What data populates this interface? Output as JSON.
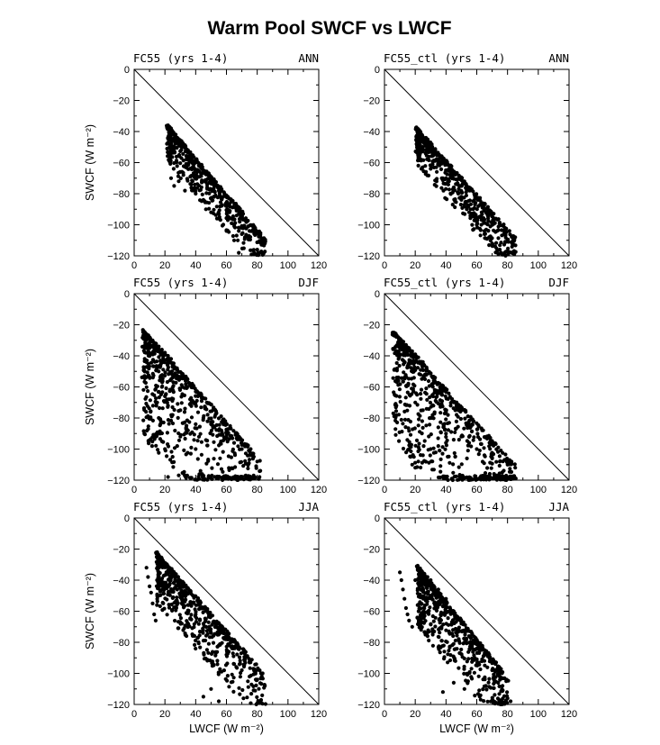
{
  "figure": {
    "title": "Warm Pool SWCF vs LWCF",
    "ylabel": "SWCF (W m⁻²)",
    "xlabel": "LWCF (W m⁻²)"
  },
  "chart_data": [
    {
      "type": "scatter",
      "left_title": "FC55 (yrs 1-4)",
      "right_title": "ANN",
      "xlim": [
        0,
        120
      ],
      "ylim": [
        -120,
        0
      ],
      "xticks": [
        0,
        20,
        40,
        60,
        80,
        100,
        120
      ],
      "yticks": [
        0,
        -20,
        -40,
        -60,
        -80,
        -100,
        -120
      ],
      "reference_line": [
        [
          0,
          0
        ],
        [
          120,
          -120
        ]
      ],
      "cloud": {
        "x0": 22,
        "x1": 85,
        "upper_at_x0": -36,
        "upper_at_x1": -108,
        "spread": 24,
        "n": 520,
        "seed": 11
      },
      "x": [
        22,
        23,
        24,
        25,
        25,
        27,
        28,
        30,
        31,
        33,
        35,
        24,
        26,
        29,
        32,
        36,
        40,
        42,
        45,
        48,
        50,
        52,
        55,
        58,
        60,
        62,
        63,
        65,
        68,
        70,
        72,
        75,
        78,
        80,
        85,
        33,
        38,
        40,
        45,
        50,
        55,
        60,
        65,
        68
      ],
      "y": [
        -36,
        -37,
        -38,
        -40,
        -45,
        -42,
        -44,
        -46,
        -48,
        -50,
        -52,
        -70,
        -75,
        -72,
        -68,
        -64,
        -60,
        -62,
        -65,
        -68,
        -72,
        -75,
        -78,
        -82,
        -88,
        -92,
        -96,
        -100,
        -104,
        -106,
        -108,
        -104,
        -118,
        -116,
        -112,
        -78,
        -72,
        -80,
        -84,
        -92,
        -96,
        -104,
        -110,
        -118
      ]
    },
    {
      "type": "scatter",
      "left_title": "FC55_ctl (yrs 1-4)",
      "right_title": "ANN",
      "xlim": [
        0,
        120
      ],
      "ylim": [
        -120,
        0
      ],
      "xticks": [
        0,
        20,
        40,
        60,
        80,
        100,
        120
      ],
      "yticks": [
        0,
        -20,
        -40,
        -60,
        -80,
        -100,
        -120
      ],
      "reference_line": [
        [
          0,
          0
        ],
        [
          120,
          -120
        ]
      ],
      "cloud": {
        "x0": 21,
        "x1": 85,
        "upper_at_x0": -37,
        "upper_at_x1": -108,
        "spread": 24,
        "n": 520,
        "seed": 23
      },
      "x": [
        21,
        22,
        23,
        24,
        26,
        28,
        30,
        32,
        35,
        38,
        40,
        22,
        24,
        27,
        30,
        34,
        38,
        42,
        45,
        48,
        50,
        53,
        56,
        58,
        60,
        63,
        65,
        68,
        70,
        72,
        75,
        78,
        80,
        83,
        85,
        40,
        45,
        50,
        55,
        60,
        65
      ],
      "y": [
        -38,
        -40,
        -42,
        -44,
        -46,
        -48,
        -50,
        -52,
        -55,
        -58,
        -60,
        -62,
        -64,
        -66,
        -64,
        -66,
        -70,
        -72,
        -76,
        -80,
        -82,
        -86,
        -90,
        -94,
        -98,
        -100,
        -104,
        -108,
        -112,
        -114,
        -116,
        -118,
        -110,
        -112,
        -108,
        -70,
        -76,
        -84,
        -92,
        -100,
        -106
      ]
    },
    {
      "type": "scatter",
      "left_title": "FC55 (yrs 1-4)",
      "right_title": "DJF",
      "xlim": [
        0,
        120
      ],
      "ylim": [
        -120,
        0
      ],
      "xticks": [
        0,
        20,
        40,
        60,
        80,
        100,
        120
      ],
      "yticks": [
        0,
        -20,
        -40,
        -60,
        -80,
        -100,
        -120
      ],
      "reference_line": [
        [
          0,
          0
        ],
        [
          120,
          -120
        ]
      ],
      "cloud": {
        "x0": 6,
        "x1": 82,
        "upper_at_x0": -23,
        "upper_at_x1": -106,
        "spread": 70,
        "n": 700,
        "seed": 37
      },
      "x": [
        6,
        7,
        8,
        9,
        10,
        12,
        14,
        16,
        18,
        20,
        22,
        24,
        15,
        16,
        17,
        18,
        20,
        22,
        25,
        28,
        30,
        35,
        40,
        45,
        50,
        55,
        60,
        65,
        70,
        75,
        80,
        82,
        18,
        20,
        22,
        25,
        30,
        34,
        40
      ],
      "y": [
        -24,
        -25,
        -26,
        -27,
        -28,
        -30,
        -32,
        -34,
        -36,
        -38,
        -40,
        -42,
        -70,
        -80,
        -90,
        -95,
        -100,
        -118,
        -105,
        -98,
        -92,
        -88,
        -84,
        -80,
        -84,
        -88,
        -92,
        -96,
        -100,
        -104,
        -108,
        -114,
        -60,
        -66,
        -72,
        -78,
        -75,
        -85,
        -100
      ]
    },
    {
      "type": "scatter",
      "left_title": "FC55_ctl (yrs 1-4)",
      "right_title": "DJF",
      "xlim": [
        0,
        120
      ],
      "ylim": [
        -120,
        0
      ],
      "xticks": [
        0,
        20,
        40,
        60,
        80,
        100,
        120
      ],
      "yticks": [
        0,
        -20,
        -40,
        -60,
        -80,
        -100,
        -120
      ],
      "reference_line": [
        [
          0,
          0
        ],
        [
          120,
          -120
        ]
      ],
      "cloud": {
        "x0": 6,
        "x1": 85,
        "upper_at_x0": -24,
        "upper_at_x1": -110,
        "spread": 70,
        "n": 700,
        "seed": 41
      },
      "x": [
        6,
        7,
        8,
        9,
        10,
        12,
        14,
        16,
        18,
        20,
        22,
        25,
        16,
        17,
        18,
        20,
        22,
        25,
        30,
        35,
        40,
        45,
        50,
        55,
        60,
        65,
        70,
        75,
        80,
        85,
        20,
        25,
        30,
        35,
        40
      ],
      "y": [
        -25,
        -26,
        -27,
        -28,
        -29,
        -31,
        -33,
        -35,
        -37,
        -39,
        -41,
        -44,
        -100,
        -105,
        -110,
        -112,
        -108,
        -104,
        -100,
        -98,
        -96,
        -94,
        -92,
        -96,
        -100,
        -104,
        -106,
        -108,
        -110,
        -112,
        -70,
        -75,
        -80,
        -86,
        -90
      ]
    },
    {
      "type": "scatter",
      "left_title": "FC55 (yrs 1-4)",
      "right_title": "JJA",
      "xlim": [
        0,
        120
      ],
      "ylim": [
        -120,
        0
      ],
      "xticks": [
        0,
        20,
        40,
        60,
        80,
        100,
        120
      ],
      "yticks": [
        0,
        -20,
        -40,
        -60,
        -80,
        -100,
        -120
      ],
      "reference_line": [
        [
          0,
          0
        ],
        [
          120,
          -120
        ]
      ],
      "cloud": {
        "x0": 15,
        "x1": 85,
        "upper_at_x0": -22,
        "upper_at_x1": -100,
        "spread": 34,
        "n": 620,
        "seed": 53
      },
      "x": [
        8,
        9,
        10,
        11,
        12,
        13,
        14,
        15,
        16,
        17,
        18,
        20,
        22,
        24,
        26,
        28,
        30,
        35,
        40,
        45,
        50,
        55,
        60,
        65,
        70,
        75,
        80,
        85,
        45,
        50,
        55
      ],
      "y": [
        -32,
        -38,
        -44,
        -48,
        -55,
        -62,
        -66,
        -22,
        -24,
        -26,
        -28,
        -30,
        -34,
        -38,
        -42,
        -46,
        -50,
        -56,
        -62,
        -68,
        -74,
        -82,
        -88,
        -94,
        -98,
        -102,
        -104,
        -108,
        -115,
        -110,
        -118
      ]
    },
    {
      "type": "scatter",
      "left_title": "FC55_ctl (yrs 1-4)",
      "right_title": "JJA",
      "xlim": [
        0,
        120
      ],
      "ylim": [
        -120,
        0
      ],
      "xticks": [
        0,
        20,
        40,
        60,
        80,
        100,
        120
      ],
      "yticks": [
        0,
        -20,
        -40,
        -60,
        -80,
        -100,
        -120
      ],
      "reference_line": [
        [
          0,
          0
        ],
        [
          120,
          -120
        ]
      ],
      "cloud": {
        "x0": 22,
        "x1": 80,
        "upper_at_x0": -31,
        "upper_at_x1": -102,
        "spread": 38,
        "n": 620,
        "seed": 67
      },
      "x": [
        10,
        11,
        12,
        13,
        14,
        15,
        16,
        18,
        20,
        22,
        24,
        26,
        28,
        30,
        35,
        40,
        45,
        50,
        55,
        60,
        65,
        70,
        75,
        80,
        82,
        38,
        45,
        52
      ],
      "y": [
        -35,
        -40,
        -46,
        -52,
        -58,
        -62,
        -66,
        -70,
        -40,
        -32,
        -34,
        -36,
        -38,
        -40,
        -46,
        -52,
        -60,
        -68,
        -76,
        -84,
        -92,
        -98,
        -102,
        -116,
        -118,
        -112,
        -106,
        -110
      ]
    }
  ]
}
